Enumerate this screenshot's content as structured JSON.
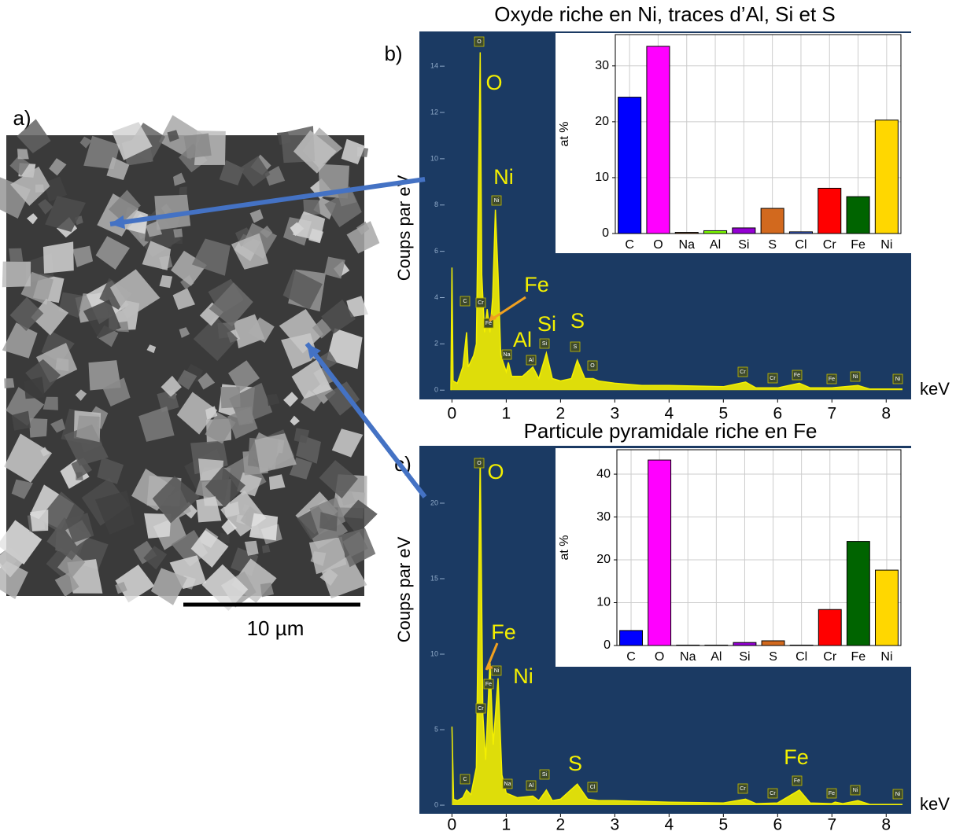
{
  "figure": {
    "panel_label": "a)",
    "scale_bar": "10 µm"
  },
  "chart_data": [
    {
      "type": "line",
      "panel_label": "b)",
      "title": "Oxyde riche en Ni, traces d’Al, Si et S",
      "y_label": "Coups par eV",
      "x_label": "keV",
      "color": "#f4f000",
      "x": [
        -0.02,
        0.0,
        0.02,
        0.1,
        0.2,
        0.27,
        0.3,
        0.4,
        0.45,
        0.52,
        0.55,
        0.6,
        0.65,
        0.7,
        0.75,
        0.8,
        0.85,
        0.9,
        1.0,
        1.04,
        1.1,
        1.3,
        1.49,
        1.6,
        1.74,
        1.85,
        2.0,
        2.2,
        2.31,
        2.45,
        2.6,
        2.7,
        3.0,
        3.5,
        4.0,
        5.0,
        5.41,
        5.6,
        6.0,
        6.4,
        6.6,
        7.0,
        7.48,
        7.7,
        8.3
      ],
      "values": [
        0,
        5.3,
        0.4,
        0.3,
        1.0,
        2.5,
        1.0,
        1.5,
        2.0,
        14.6,
        5.0,
        2.5,
        3.5,
        2.5,
        4.0,
        7.8,
        5.0,
        1.5,
        0.8,
        1.2,
        0.6,
        0.6,
        1.0,
        0.5,
        1.6,
        0.5,
        0.4,
        0.5,
        1.3,
        0.5,
        0.5,
        0.4,
        0.3,
        0.2,
        0.2,
        0.15,
        0.35,
        0.1,
        0.1,
        0.3,
        0.1,
        0.1,
        0.2,
        0.05,
        0.05
      ],
      "xlim": [
        -0.6,
        8.46
      ],
      "xticks": [
        0,
        1,
        2,
        3,
        4,
        5,
        6,
        7,
        8
      ],
      "ylim": [
        -0.4,
        15.5
      ],
      "yticks": [
        0,
        2,
        4,
        6,
        8,
        10,
        12,
        14
      ],
      "annotations": [
        "O",
        "Ni",
        "Fe",
        "Al",
        "Si",
        "S"
      ],
      "peak_labels": [
        "O",
        "Ni",
        "C",
        "Cr",
        "Fe",
        "Na",
        "Al",
        "Si",
        "S",
        "O",
        "Cr",
        "Cr",
        "Fe",
        "Fe",
        "Ni",
        "Ni"
      ]
    },
    {
      "type": "bar",
      "y_label": "at %",
      "categories": [
        "C",
        "O",
        "Na",
        "Al",
        "Si",
        "S",
        "Cl",
        "Cr",
        "Fe",
        "Ni"
      ],
      "values": [
        24.4,
        33.5,
        0.2,
        0.5,
        1.0,
        4.5,
        0.3,
        8.1,
        6.6,
        20.3
      ],
      "colors": [
        "#0000ff",
        "#ff00ff",
        "#8b4513",
        "#7cfc00",
        "#9400d3",
        "#d2691e",
        "#4169e1",
        "#ff0000",
        "#006400",
        "#ffd700"
      ],
      "ylim": [
        0,
        35.6
      ],
      "yticks": [
        0,
        10,
        20,
        30
      ],
      "grid": true
    },
    {
      "type": "line",
      "panel_label": "c)",
      "title": "Particule pyramidale riche en Fe",
      "y_label": "Coups par eV",
      "x_label": "keV",
      "color": "#f4f000",
      "x": [
        0.0,
        0.03,
        0.1,
        0.2,
        0.27,
        0.35,
        0.45,
        0.52,
        0.57,
        0.62,
        0.7,
        0.76,
        0.85,
        0.92,
        1.0,
        1.2,
        1.49,
        1.6,
        1.74,
        1.85,
        2.0,
        2.31,
        2.5,
        2.7,
        3.0,
        4.0,
        5.0,
        5.41,
        5.6,
        6.0,
        6.4,
        6.6,
        7.0,
        7.06,
        7.2,
        7.48,
        7.7,
        8.3
      ],
      "values": [
        5.2,
        0.4,
        0.3,
        0.5,
        1.0,
        0.7,
        2.5,
        23.0,
        6.0,
        3.0,
        9.5,
        4.0,
        8.4,
        2.0,
        0.8,
        0.5,
        0.6,
        0.3,
        1.0,
        0.3,
        0.4,
        1.4,
        0.4,
        0.3,
        0.3,
        0.2,
        0.15,
        0.4,
        0.1,
        0.15,
        1.0,
        0.15,
        0.1,
        0.2,
        0.1,
        0.3,
        0.05,
        0.05
      ],
      "xlim": [
        -0.6,
        8.46
      ],
      "xticks": [
        0,
        1,
        2,
        3,
        4,
        5,
        6,
        7,
        8
      ],
      "ylim": [
        -0.57,
        23.8
      ],
      "yticks": [
        0,
        5,
        10,
        15,
        20
      ],
      "annotations": [
        "O",
        "Fe",
        "Ni",
        "S",
        "Fe"
      ],
      "peak_labels": [
        "O",
        "Ni",
        "Fe",
        "Cr",
        "C",
        "Na",
        "Al",
        "Si",
        "Cl",
        "Cr",
        "Cr",
        "Fe",
        "Fe",
        "Ni",
        "Ni"
      ]
    },
    {
      "type": "bar",
      "y_label": "at %",
      "categories": [
        "C",
        "O",
        "Na",
        "Al",
        "Si",
        "S",
        "Cl",
        "Cr",
        "Fe",
        "Ni"
      ],
      "values": [
        3.5,
        43.3,
        0.1,
        0.1,
        0.7,
        1.1,
        0.1,
        8.4,
        24.3,
        17.6
      ],
      "colors": [
        "#0000ff",
        "#ff00ff",
        "#8b4513",
        "#7cfc00",
        "#9400d3",
        "#d2691e",
        "#4169e1",
        "#ff0000",
        "#006400",
        "#ffd700"
      ],
      "ylim": [
        0,
        45.7
      ],
      "yticks": [
        0,
        10,
        20,
        30,
        40
      ],
      "grid": true
    }
  ]
}
